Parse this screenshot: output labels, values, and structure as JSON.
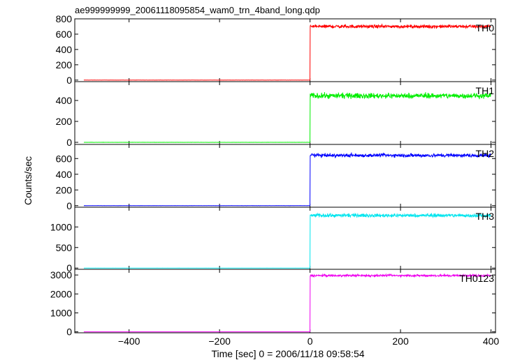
{
  "title": "ae999999999_20061118095854_wam0_trn_4band_long.qdp",
  "chart_data": {
    "type": "line",
    "title": "ae999999999_20061118095854_wam0_trn_4band_long.qdp",
    "xlabel": "Time [sec] 0 = 2006/11/18 09:58:54",
    "ylabel": "Counts/sec",
    "xlim": [
      -520,
      410
    ],
    "xticks": [
      -400,
      -200,
      0,
      200,
      400
    ],
    "xtick_labels": [
      "−400",
      "−200",
      "0",
      "200",
      "400"
    ],
    "grid": false,
    "legend": "none",
    "step_time": 0,
    "panels": [
      {
        "name": "TH0",
        "color": "#ff0000",
        "ylim": [
          -20,
          800
        ],
        "yticks": [
          0,
          200,
          400,
          600,
          800
        ],
        "ytick_labels": [
          "0",
          "200",
          "400",
          "600",
          "800"
        ],
        "x_start": -500,
        "x_end": 400,
        "before_level": 0,
        "after_level": 700,
        "noise": 15
      },
      {
        "name": "TH1",
        "color": "#00ee00",
        "ylim": [
          -20,
          580
        ],
        "yticks": [
          0,
          200,
          400
        ],
        "ytick_labels": [
          "0",
          "200",
          "400"
        ],
        "x_start": -500,
        "x_end": 400,
        "before_level": 0,
        "after_level": 445,
        "noise": 18
      },
      {
        "name": "TH2",
        "color": "#0000ff",
        "ylim": [
          -20,
          780
        ],
        "yticks": [
          0,
          200,
          400,
          600
        ],
        "ytick_labels": [
          "0",
          "200",
          "400",
          "600"
        ],
        "x_start": -500,
        "x_end": 400,
        "before_level": 0,
        "after_level": 640,
        "noise": 16
      },
      {
        "name": "TH3",
        "color": "#00e5ee",
        "ylim": [
          -30,
          1480
        ],
        "yticks": [
          0,
          500,
          1000
        ],
        "ytick_labels": [
          "0",
          "500",
          "1000"
        ],
        "x_start": -500,
        "x_end": 400,
        "before_level": 0,
        "after_level": 1280,
        "noise": 30
      },
      {
        "name": "TH0123",
        "color": "#ee00ee",
        "ylim": [
          -50,
          3300
        ],
        "yticks": [
          0,
          1000,
          2000,
          3000
        ],
        "ytick_labels": [
          "0",
          "1000",
          "2000",
          "3000"
        ],
        "x_start": -500,
        "x_end": 400,
        "before_level": 0,
        "after_level": 2970,
        "noise": 40
      }
    ]
  }
}
